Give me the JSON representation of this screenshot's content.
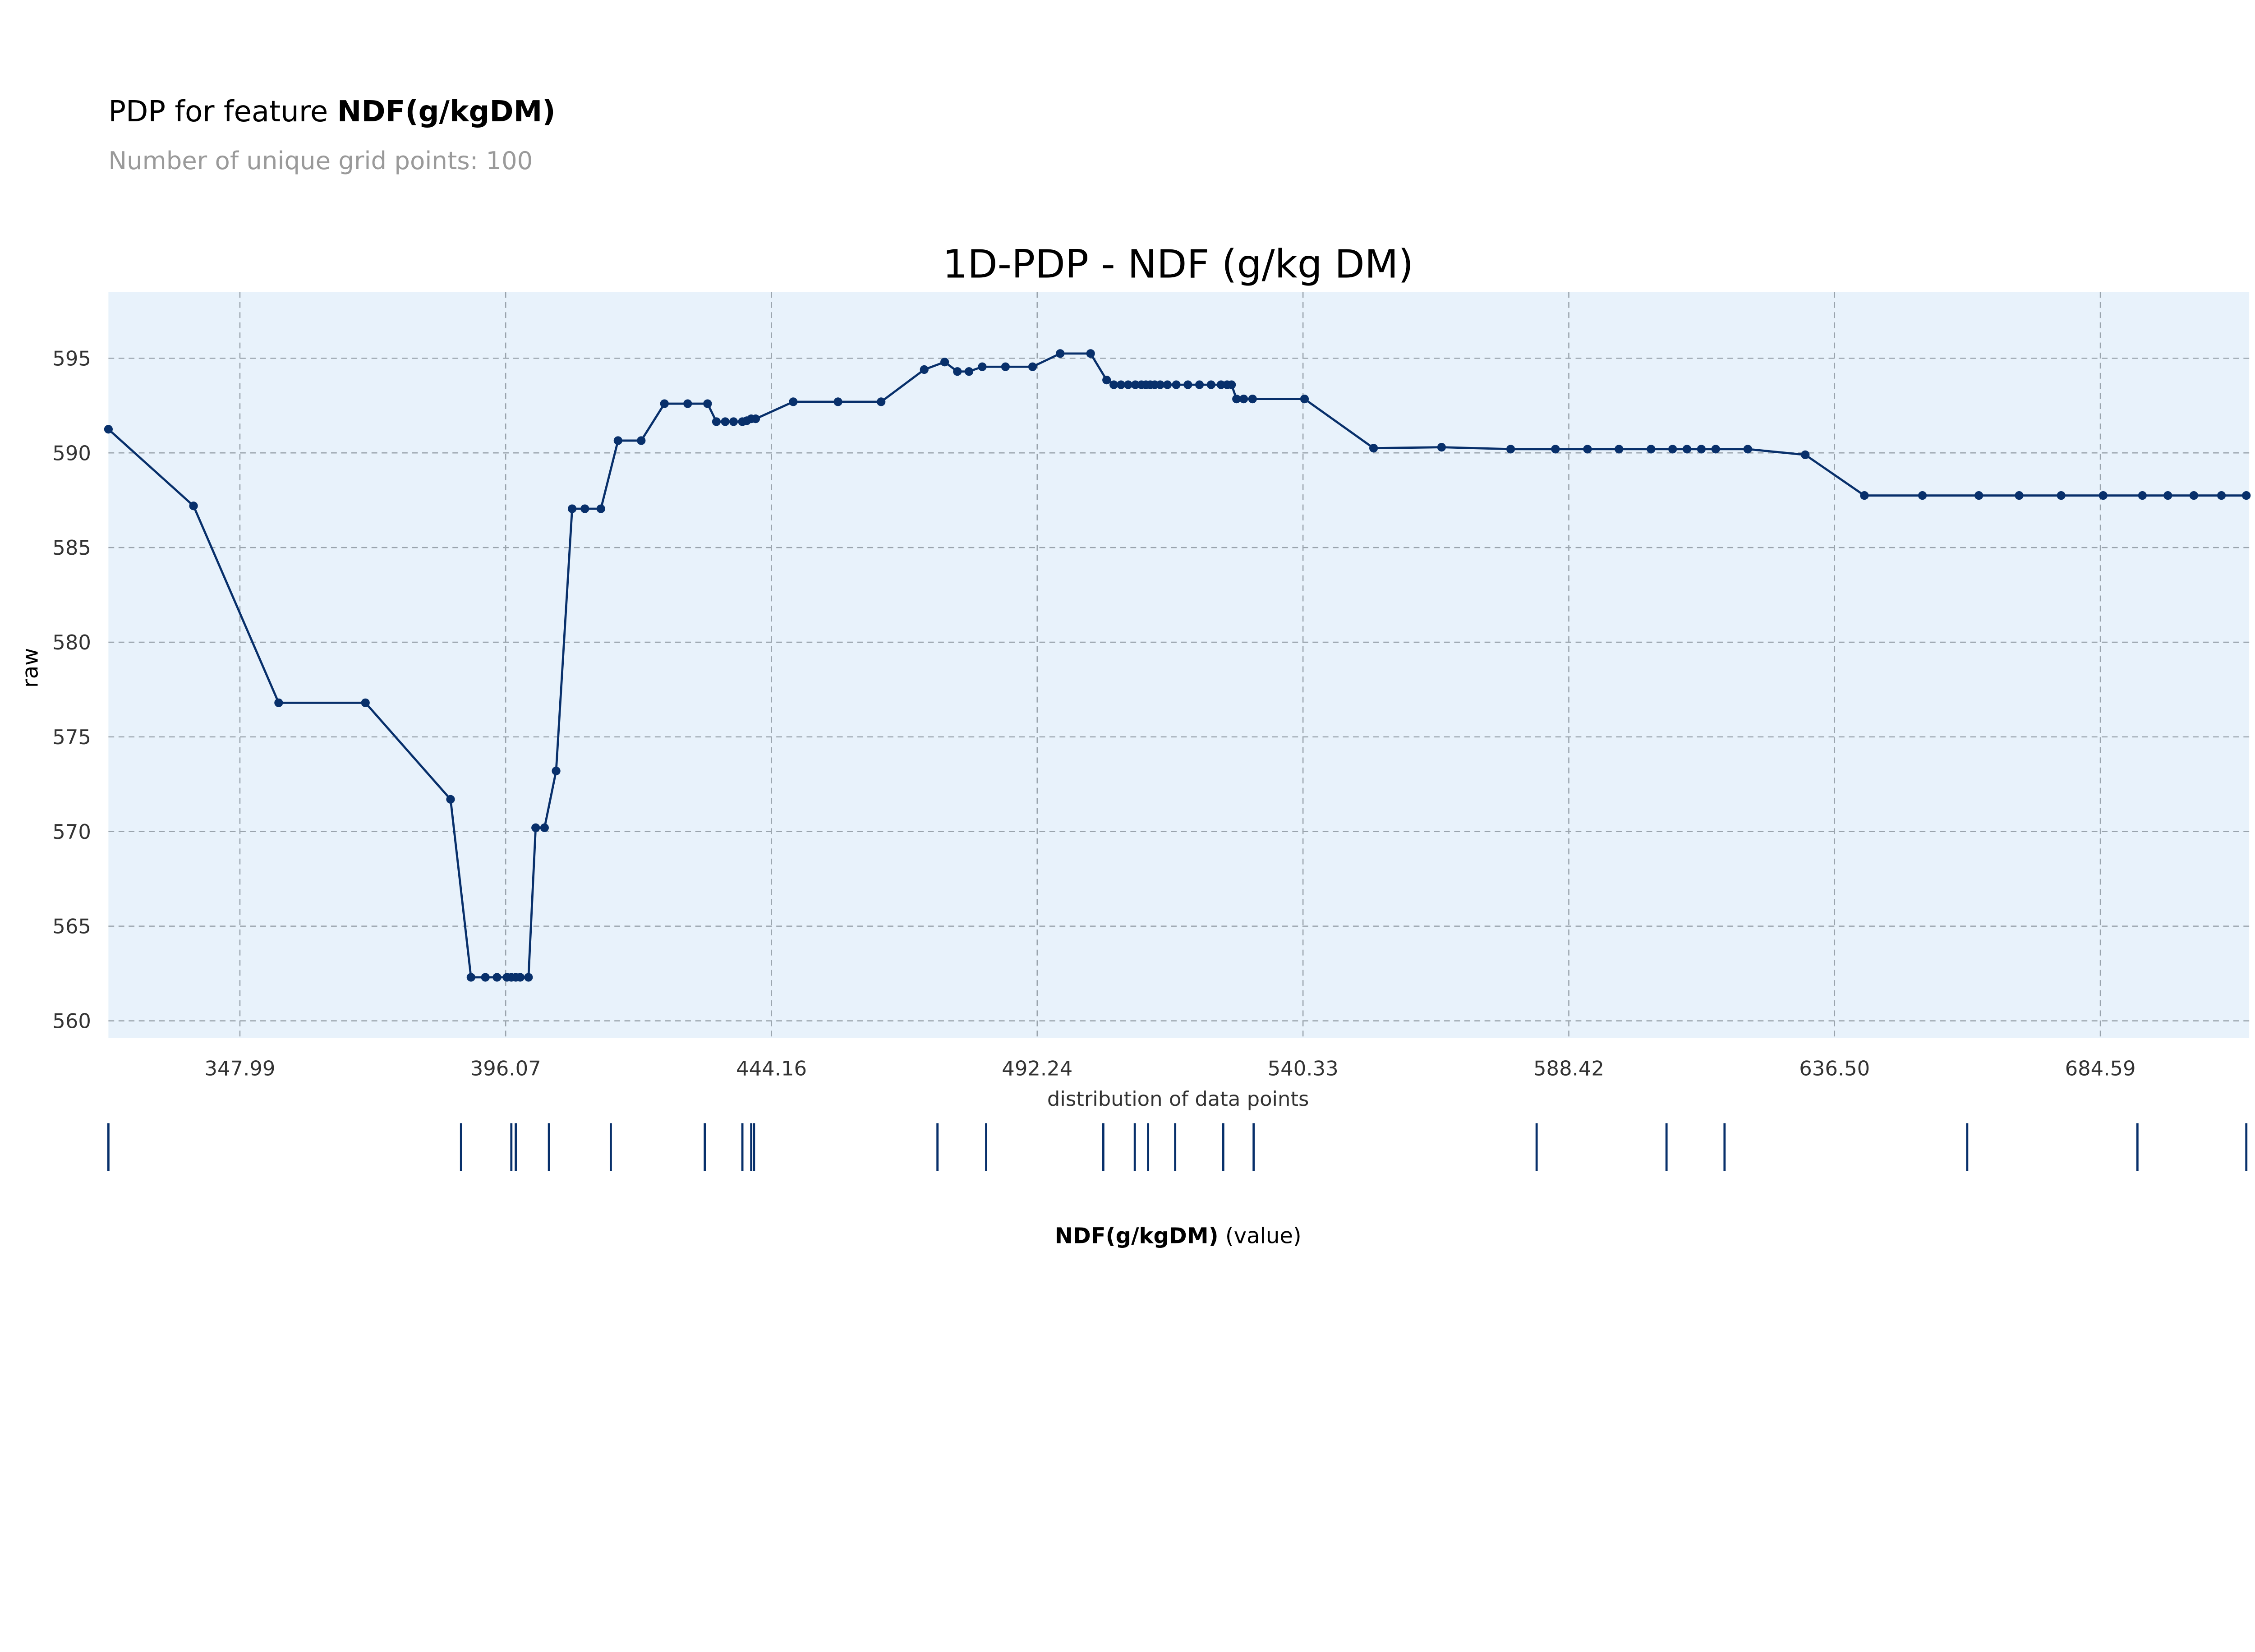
{
  "header": {
    "title_prefix": "PDP for feature ",
    "title_feature": "NDF(g/kgDM)",
    "subtitle": "Number of unique grid points: 100"
  },
  "chart_data": {
    "type": "line",
    "title": "1D-PDP - NDF (g/kg DM)",
    "xlabel": "",
    "ylabel": "raw",
    "xlim": [
      324.2,
      711.0
    ],
    "ylim": [
      559.1,
      598.5
    ],
    "xticks": [
      "347.99",
      "396.07",
      "444.16",
      "492.24",
      "540.33",
      "588.42",
      "636.50",
      "684.59"
    ],
    "xtick_values": [
      347.99,
      396.07,
      444.16,
      492.24,
      540.33,
      588.42,
      636.5,
      684.59
    ],
    "yticks": [
      560,
      565,
      570,
      575,
      580,
      585,
      590,
      595
    ],
    "grid": true,
    "background_color": "#e8f2fb",
    "line_color": "#08306b",
    "grid_color": "#9aa4ad",
    "series": [
      {
        "x": [
          324.2,
          339.6,
          355.0,
          370.7,
          386.1,
          389.8,
          392.4,
          394.5,
          396.3,
          397.1,
          397.9,
          398.7,
          400.2,
          401.5,
          403.1,
          405.2,
          408.1,
          410.4,
          413.3,
          416.4,
          420.6,
          424.8,
          429.0,
          432.6,
          434.2,
          435.8,
          437.3,
          438.9,
          439.7,
          440.5,
          441.3,
          448.1,
          456.2,
          464.0,
          471.8,
          475.5,
          477.8,
          479.9,
          482.3,
          486.5,
          491.4,
          496.4,
          501.9,
          504.8,
          506.1,
          507.4,
          508.7,
          510.0,
          511.1,
          511.9,
          512.7,
          513.5,
          514.5,
          515.8,
          517.4,
          519.5,
          521.6,
          523.7,
          525.5,
          526.6,
          527.4,
          528.3,
          529.6,
          531.2,
          540.6,
          553.1,
          565.4,
          577.9,
          586.0,
          591.8,
          597.5,
          603.3,
          607.2,
          609.8,
          612.4,
          615.0,
          620.8,
          631.2,
          641.9,
          652.4,
          662.6,
          669.9,
          677.5,
          685.1,
          692.2,
          696.8,
          701.5,
          706.5,
          711.0
        ],
        "y": [
          591.25,
          587.2,
          576.8,
          576.8,
          571.7,
          562.3,
          562.3,
          562.3,
          562.3,
          562.3,
          562.3,
          562.3,
          562.3,
          570.2,
          570.2,
          573.2,
          587.05,
          587.05,
          587.05,
          590.65,
          590.65,
          592.6,
          592.6,
          592.6,
          591.65,
          591.65,
          591.65,
          591.65,
          591.7,
          591.8,
          591.8,
          592.7,
          592.7,
          592.7,
          594.4,
          594.8,
          594.3,
          594.3,
          594.55,
          594.55,
          594.55,
          595.25,
          595.25,
          593.85,
          593.6,
          593.6,
          593.6,
          593.6,
          593.6,
          593.6,
          593.6,
          593.6,
          593.6,
          593.6,
          593.6,
          593.6,
          593.6,
          593.6,
          593.6,
          593.6,
          593.6,
          592.85,
          592.85,
          592.85,
          592.85,
          590.25,
          590.3,
          590.2,
          590.2,
          590.2,
          590.2,
          590.2,
          590.2,
          590.2,
          590.2,
          590.2,
          590.2,
          589.9,
          587.75,
          587.75,
          587.75,
          587.75,
          587.75,
          587.75,
          587.75,
          587.75,
          587.75,
          587.75,
          587.75
        ]
      }
    ],
    "distribution": {
      "title": "distribution of data points",
      "xlabel_feature": "NDF(g/kgDM)",
      "xlabel_suffix": " (value)",
      "values": [
        324.2,
        388.0,
        397.1,
        397.9,
        403.9,
        415.1,
        432.1,
        438.9,
        440.5,
        441.0,
        474.2,
        483.0,
        504.2,
        509.9,
        512.3,
        517.2,
        525.9,
        531.4,
        582.6,
        606.1,
        616.6,
        660.5,
        691.3,
        711.0
      ]
    }
  }
}
